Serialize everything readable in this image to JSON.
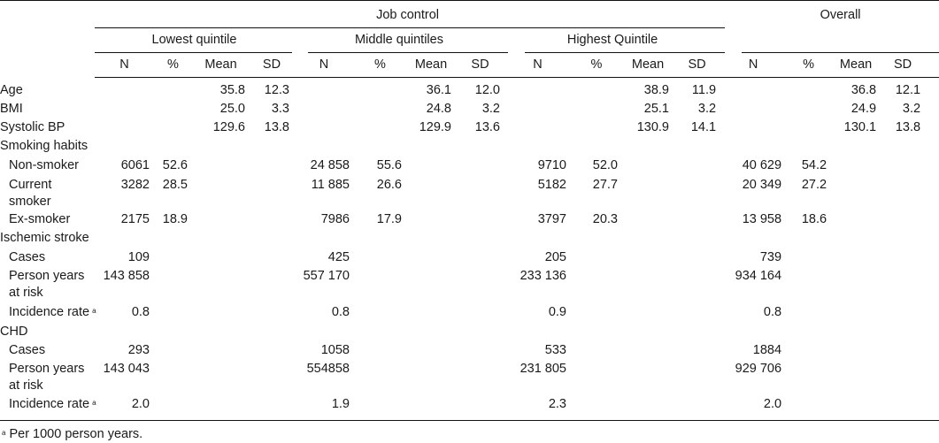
{
  "header": {
    "job_control": "Job control",
    "overall": "Overall",
    "groups": [
      "Lowest quintile",
      "Middle quintiles",
      "Highest Quintile"
    ],
    "columns": [
      "N",
      "%",
      "Mean",
      "SD"
    ]
  },
  "rows": [
    {
      "label": "Age",
      "sub": false,
      "cells": [
        "",
        "",
        "35.8",
        "12.3",
        "",
        "",
        "36.1",
        "12.0",
        "",
        "",
        "38.9",
        "11.9",
        "",
        "",
        "36.8",
        "12.1"
      ]
    },
    {
      "label": "BMI",
      "sub": false,
      "cells": [
        "",
        "",
        "25.0",
        "3.3",
        "",
        "",
        "24.8",
        "3.2",
        "",
        "",
        "25.1",
        "3.2",
        "",
        "",
        "24.9",
        "3.2"
      ]
    },
    {
      "label": "Systolic BP",
      "sub": false,
      "cells": [
        "",
        "",
        "129.6",
        "13.8",
        "",
        "",
        "129.9",
        "13.6",
        "",
        "",
        "130.9",
        "14.1",
        "",
        "",
        "130.1",
        "13.8"
      ]
    },
    {
      "label": "Smoking habits",
      "sub": false,
      "cells": []
    },
    {
      "label": "Non-smoker",
      "sub": true,
      "cells": [
        "6061",
        "52.6",
        "",
        "",
        "24 858",
        "55.6",
        "",
        "",
        "9710",
        "52.0",
        "",
        "",
        "40 629",
        "54.2",
        "",
        ""
      ]
    },
    {
      "label": "Current\nsmoker",
      "sub": true,
      "cells": [
        "3282",
        "28.5",
        "",
        "",
        "11 885",
        "26.6",
        "",
        "",
        "5182",
        "27.7",
        "",
        "",
        "20 349",
        "27.2",
        "",
        ""
      ]
    },
    {
      "label": "Ex-smoker",
      "sub": true,
      "cells": [
        "2175",
        "18.9",
        "",
        "",
        "7986",
        "17.9",
        "",
        "",
        "3797",
        "20.3",
        "",
        "",
        "13 958",
        "18.6",
        "",
        ""
      ]
    },
    {
      "label": "Ischemic stroke",
      "sub": false,
      "cells": []
    },
    {
      "label": "Cases",
      "sub": true,
      "cells": [
        "109",
        "",
        "",
        "",
        "425",
        "",
        "",
        "",
        "205",
        "",
        "",
        "",
        "739",
        "",
        "",
        ""
      ]
    },
    {
      "label": "Person years\nat risk",
      "sub": true,
      "cells": [
        "143 858",
        "",
        "",
        "",
        "557 170",
        "",
        "",
        "",
        "233 136",
        "",
        "",
        "",
        "934 164",
        "",
        "",
        ""
      ]
    },
    {
      "label": "Incidence rate",
      "sup": "a",
      "sub": true,
      "cells": [
        "0.8",
        "",
        "",
        "",
        "0.8",
        "",
        "",
        "",
        "0.9",
        "",
        "",
        "",
        "0.8",
        "",
        "",
        ""
      ]
    },
    {
      "label": "CHD",
      "sub": false,
      "cells": []
    },
    {
      "label": "Cases",
      "sub": true,
      "cells": [
        "293",
        "",
        "",
        "",
        "1058",
        "",
        "",
        "",
        "533",
        "",
        "",
        "",
        "1884",
        "",
        "",
        ""
      ]
    },
    {
      "label": "Person years\nat risk",
      "sub": true,
      "cells": [
        "143 043",
        "",
        "",
        "",
        "554858",
        "",
        "",
        "",
        "231 805",
        "",
        "",
        "",
        "929 706",
        "",
        "",
        ""
      ]
    },
    {
      "label": "Incidence rate",
      "sup": "a",
      "sub": true,
      "cells": [
        "2.0",
        "",
        "",
        "",
        "1.9",
        "",
        "",
        "",
        "2.3",
        "",
        "",
        "",
        "2.0",
        "",
        "",
        ""
      ]
    }
  ],
  "footnote": {
    "marker": "a",
    "text": "Per 1000 person years."
  }
}
